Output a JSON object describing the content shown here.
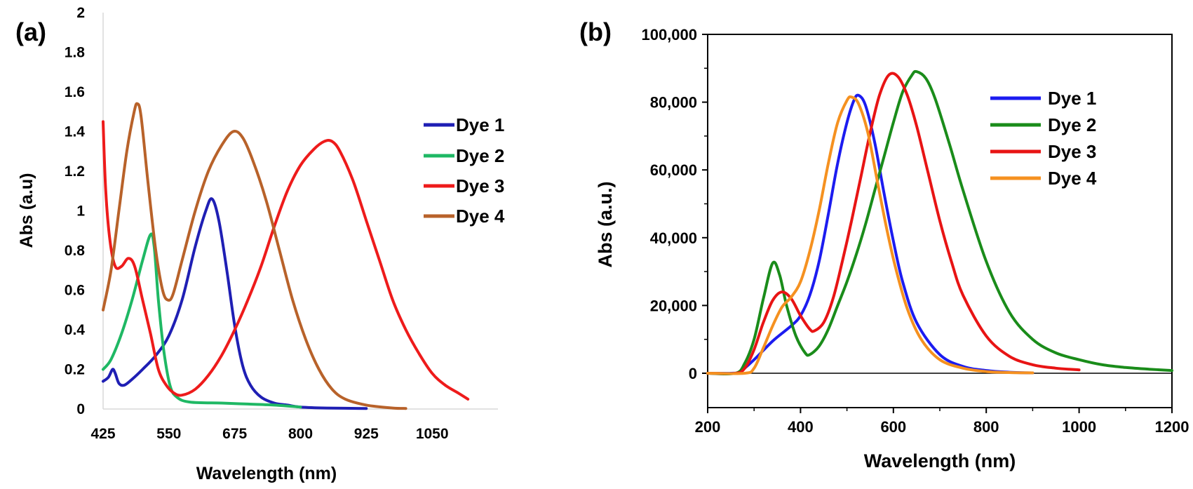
{
  "chart_data": [
    {
      "type": "line",
      "panel_label": "(a)",
      "title": "",
      "xlabel": "Wavelength (nm)",
      "ylabel": "Abs (a.u)",
      "xlim": [
        425,
        1175
      ],
      "ylim": [
        0,
        2
      ],
      "x_ticks": [
        425,
        550,
        675,
        800,
        925,
        1050
      ],
      "x_tick_labels": [
        "425",
        "550",
        "675",
        "800",
        "925",
        "1050"
      ],
      "y_ticks": [
        0,
        0.2,
        0.4,
        0.6,
        0.8,
        1,
        1.2,
        1.4,
        1.6,
        1.8,
        2
      ],
      "y_tick_labels": [
        "0",
        "0.2",
        "0.4",
        "0.6",
        "0.8",
        "1",
        "1.2",
        "1.4",
        "1.6",
        "1.8",
        "2"
      ],
      "grid": false,
      "legend_position": "right",
      "series": [
        {
          "name": "Dye 1",
          "color": "#1f1fb4",
          "points": [
            [
              425,
              0.14
            ],
            [
              435,
              0.16
            ],
            [
              443,
              0.2
            ],
            [
              448,
              0.18
            ],
            [
              455,
              0.13
            ],
            [
              465,
              0.12
            ],
            [
              480,
              0.15
            ],
            [
              500,
              0.2
            ],
            [
              525,
              0.27
            ],
            [
              550,
              0.37
            ],
            [
              575,
              0.55
            ],
            [
              600,
              0.82
            ],
            [
              620,
              1.0
            ],
            [
              632,
              1.06
            ],
            [
              645,
              0.95
            ],
            [
              660,
              0.7
            ],
            [
              675,
              0.42
            ],
            [
              690,
              0.22
            ],
            [
              705,
              0.12
            ],
            [
              725,
              0.06
            ],
            [
              750,
              0.03
            ],
            [
              775,
              0.02
            ],
            [
              800,
              0.01
            ],
            [
              850,
              0.005
            ],
            [
              925,
              0.003
            ]
          ]
        },
        {
          "name": "Dye 2",
          "color": "#1fb864",
          "points": [
            [
              425,
              0.2
            ],
            [
              440,
              0.25
            ],
            [
              460,
              0.38
            ],
            [
              480,
              0.55
            ],
            [
              500,
              0.75
            ],
            [
              515,
              0.88
            ],
            [
              522,
              0.82
            ],
            [
              530,
              0.55
            ],
            [
              540,
              0.3
            ],
            [
              552,
              0.12
            ],
            [
              565,
              0.06
            ],
            [
              590,
              0.035
            ],
            [
              650,
              0.03
            ],
            [
              700,
              0.025
            ],
            [
              750,
              0.02
            ],
            [
              800,
              0.01
            ]
          ]
        },
        {
          "name": "Dye 3",
          "color": "#ee1b1b",
          "points": [
            [
              425,
              1.45
            ],
            [
              430,
              1.1
            ],
            [
              438,
              0.85
            ],
            [
              448,
              0.72
            ],
            [
              460,
              0.72
            ],
            [
              473,
              0.76
            ],
            [
              485,
              0.72
            ],
            [
              500,
              0.55
            ],
            [
              515,
              0.38
            ],
            [
              530,
              0.2
            ],
            [
              545,
              0.12
            ],
            [
              560,
              0.08
            ],
            [
              575,
              0.07
            ],
            [
              600,
              0.1
            ],
            [
              625,
              0.17
            ],
            [
              650,
              0.27
            ],
            [
              675,
              0.4
            ],
            [
              700,
              0.55
            ],
            [
              725,
              0.72
            ],
            [
              750,
              0.92
            ],
            [
              775,
              1.1
            ],
            [
              800,
              1.23
            ],
            [
              825,
              1.31
            ],
            [
              845,
              1.35
            ],
            [
              860,
              1.35
            ],
            [
              875,
              1.3
            ],
            [
              900,
              1.15
            ],
            [
              925,
              0.95
            ],
            [
              950,
              0.75
            ],
            [
              975,
              0.55
            ],
            [
              1000,
              0.4
            ],
            [
              1025,
              0.28
            ],
            [
              1050,
              0.18
            ],
            [
              1075,
              0.12
            ],
            [
              1100,
              0.08
            ],
            [
              1118,
              0.05
            ]
          ]
        },
        {
          "name": "Dye 4",
          "color": "#b8622a",
          "points": [
            [
              425,
              0.5
            ],
            [
              440,
              0.7
            ],
            [
              455,
              1.0
            ],
            [
              470,
              1.3
            ],
            [
              484,
              1.5
            ],
            [
              490,
              1.54
            ],
            [
              497,
              1.48
            ],
            [
              510,
              1.15
            ],
            [
              525,
              0.8
            ],
            [
              538,
              0.6
            ],
            [
              548,
              0.55
            ],
            [
              558,
              0.58
            ],
            [
              575,
              0.75
            ],
            [
              600,
              1.0
            ],
            [
              625,
              1.2
            ],
            [
              650,
              1.33
            ],
            [
              672,
              1.4
            ],
            [
              690,
              1.37
            ],
            [
              710,
              1.25
            ],
            [
              735,
              1.05
            ],
            [
              760,
              0.8
            ],
            [
              785,
              0.55
            ],
            [
              810,
              0.35
            ],
            [
              835,
              0.2
            ],
            [
              860,
              0.1
            ],
            [
              885,
              0.05
            ],
            [
              925,
              0.02
            ],
            [
              975,
              0.005
            ],
            [
              1000,
              0.003
            ]
          ]
        }
      ]
    },
    {
      "type": "line",
      "panel_label": "(b)",
      "title": "",
      "xlabel": "Wavelength (nm)",
      "ylabel": "Abs (a.u.)",
      "xlim": [
        200,
        1200
      ],
      "ylim": [
        -10000,
        100000
      ],
      "x_ticks": [
        200,
        400,
        600,
        800,
        1000,
        1200
      ],
      "x_tick_labels": [
        "200",
        "400",
        "600",
        "800",
        "1000",
        "1200"
      ],
      "y_ticks": [
        0,
        20000,
        40000,
        60000,
        80000,
        100000
      ],
      "y_tick_labels": [
        "0",
        "20,000",
        "40,000",
        "60,000",
        "80,000",
        "100,000"
      ],
      "grid": false,
      "legend_position": "top-right",
      "series": [
        {
          "name": "Dye 1",
          "color": "#1c1cf0",
          "points": [
            [
              200,
              0
            ],
            [
              250,
              0
            ],
            [
              270,
              500
            ],
            [
              300,
              4000
            ],
            [
              340,
              9500
            ],
            [
              380,
              14000
            ],
            [
              400,
              17000
            ],
            [
              420,
              23000
            ],
            [
              440,
              33000
            ],
            [
              460,
              47000
            ],
            [
              480,
              62000
            ],
            [
              500,
              74000
            ],
            [
              515,
              80500
            ],
            [
              525,
              82000
            ],
            [
              540,
              79000
            ],
            [
              560,
              68000
            ],
            [
              580,
              53000
            ],
            [
              600,
              39000
            ],
            [
              620,
              27000
            ],
            [
              650,
              15000
            ],
            [
              700,
              5500
            ],
            [
              750,
              2000
            ],
            [
              800,
              800
            ],
            [
              850,
              300
            ],
            [
              900,
              100
            ]
          ]
        },
        {
          "name": "Dye 2",
          "color": "#1a8c1a",
          "points": [
            [
              200,
              0
            ],
            [
              260,
              0
            ],
            [
              280,
              3000
            ],
            [
              300,
              10000
            ],
            [
              320,
              22000
            ],
            [
              340,
              32500
            ],
            [
              355,
              29000
            ],
            [
              370,
              20000
            ],
            [
              390,
              11000
            ],
            [
              410,
              6000
            ],
            [
              420,
              5500
            ],
            [
              440,
              8000
            ],
            [
              460,
              13000
            ],
            [
              480,
              20000
            ],
            [
              500,
              27000
            ],
            [
              520,
              35000
            ],
            [
              540,
              44000
            ],
            [
              560,
              54000
            ],
            [
              580,
              64000
            ],
            [
              600,
              74000
            ],
            [
              620,
              83000
            ],
            [
              640,
              88000
            ],
            [
              650,
              89000
            ],
            [
              670,
              87000
            ],
            [
              690,
              81000
            ],
            [
              720,
              68000
            ],
            [
              750,
              54000
            ],
            [
              800,
              33000
            ],
            [
              850,
              18000
            ],
            [
              900,
              10000
            ],
            [
              950,
              6000
            ],
            [
              1000,
              4000
            ],
            [
              1050,
              2500
            ],
            [
              1100,
              1700
            ],
            [
              1150,
              1200
            ],
            [
              1200,
              800
            ]
          ]
        },
        {
          "name": "Dye 3",
          "color": "#e81414",
          "points": [
            [
              200,
              0
            ],
            [
              260,
              0
            ],
            [
              280,
              1500
            ],
            [
              300,
              7000
            ],
            [
              320,
              15000
            ],
            [
              340,
              21500
            ],
            [
              360,
              24000
            ],
            [
              380,
              22000
            ],
            [
              400,
              17000
            ],
            [
              420,
              13000
            ],
            [
              430,
              12500
            ],
            [
              450,
              15000
            ],
            [
              470,
              22000
            ],
            [
              490,
              33000
            ],
            [
              510,
              45000
            ],
            [
              530,
              58000
            ],
            [
              550,
              71000
            ],
            [
              570,
              82000
            ],
            [
              590,
              88000
            ],
            [
              610,
              87500
            ],
            [
              630,
              82000
            ],
            [
              650,
              73000
            ],
            [
              675,
              59000
            ],
            [
              700,
              45000
            ],
            [
              725,
              33000
            ],
            [
              750,
              23000
            ],
            [
              800,
              11000
            ],
            [
              850,
              5000
            ],
            [
              900,
              2500
            ],
            [
              950,
              1500
            ],
            [
              1000,
              1000
            ]
          ]
        },
        {
          "name": "Dye 4",
          "color": "#f59120",
          "points": [
            [
              200,
              0
            ],
            [
              280,
              0
            ],
            [
              300,
              1500
            ],
            [
              320,
              7500
            ],
            [
              340,
              14000
            ],
            [
              360,
              19500
            ],
            [
              380,
              22500
            ],
            [
              400,
              27000
            ],
            [
              420,
              36000
            ],
            [
              440,
              48000
            ],
            [
              460,
              62000
            ],
            [
              480,
              74000
            ],
            [
              500,
              80500
            ],
            [
              510,
              81500
            ],
            [
              525,
              79500
            ],
            [
              545,
              71000
            ],
            [
              565,
              57000
            ],
            [
              585,
              43000
            ],
            [
              605,
              31000
            ],
            [
              630,
              19000
            ],
            [
              660,
              10000
            ],
            [
              700,
              4000
            ],
            [
              750,
              1500
            ],
            [
              800,
              500
            ],
            [
              850,
              200
            ],
            [
              900,
              100
            ]
          ]
        }
      ]
    }
  ]
}
